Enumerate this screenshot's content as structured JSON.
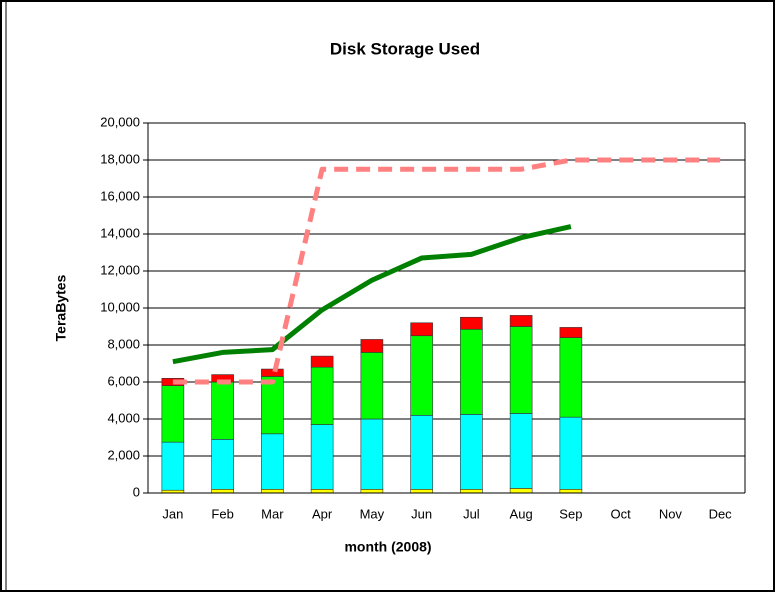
{
  "chart_data": {
    "type": "bar",
    "title": "Disk Storage Used",
    "x_label": "month (2008)",
    "y_label": "TeraBytes",
    "categories": [
      "Jan",
      "Feb",
      "Mar",
      "Apr",
      "May",
      "Jun",
      "Jul",
      "Aug",
      "Sep",
      "Oct",
      "Nov",
      "Dec"
    ],
    "stacked": true,
    "grid": true,
    "ylim": [
      0,
      20000
    ],
    "yticks": [
      {
        "value": 0,
        "label": "0"
      },
      {
        "value": 2000,
        "label": "2,000"
      },
      {
        "value": 4000,
        "label": "4,000"
      },
      {
        "value": 6000,
        "label": "6,000"
      },
      {
        "value": 8000,
        "label": "8,000"
      },
      {
        "value": 10000,
        "label": "10,000"
      },
      {
        "value": 12000,
        "label": "12,000"
      },
      {
        "value": 14000,
        "label": "14,000"
      },
      {
        "value": 16000,
        "label": "16,000"
      },
      {
        "value": 18000,
        "label": "18,000"
      },
      {
        "value": 20000,
        "label": "20,000"
      }
    ],
    "series": [
      {
        "type": "bar",
        "color": "#ffff00",
        "values": [
          150,
          200,
          200,
          200,
          200,
          200,
          200,
          250,
          200,
          null,
          null,
          null
        ]
      },
      {
        "type": "bar",
        "color": "#00ffff",
        "values": [
          2600,
          2700,
          3000,
          3500,
          3800,
          4000,
          4050,
          4050,
          3900,
          null,
          null,
          null
        ]
      },
      {
        "type": "bar",
        "color": "#00ff00",
        "values": [
          3050,
          3100,
          3100,
          3100,
          3600,
          4300,
          4600,
          4700,
          4300,
          null,
          null,
          null
        ]
      },
      {
        "type": "bar",
        "color": "#ff0000",
        "values": [
          400,
          400,
          400,
          600,
          700,
          700,
          650,
          600,
          550,
          null,
          null,
          null
        ]
      },
      {
        "type": "line",
        "color": "#008000",
        "values": [
          7100,
          7600,
          7750,
          9900,
          11500,
          12700,
          12900,
          13800,
          14400,
          null,
          null,
          null
        ]
      },
      {
        "type": "line",
        "color": "#ff8080",
        "dashed": true,
        "values": [
          6000,
          6000,
          6000,
          17500,
          17500,
          17500,
          17500,
          17500,
          18000,
          18000,
          18000,
          18000
        ]
      }
    ]
  }
}
